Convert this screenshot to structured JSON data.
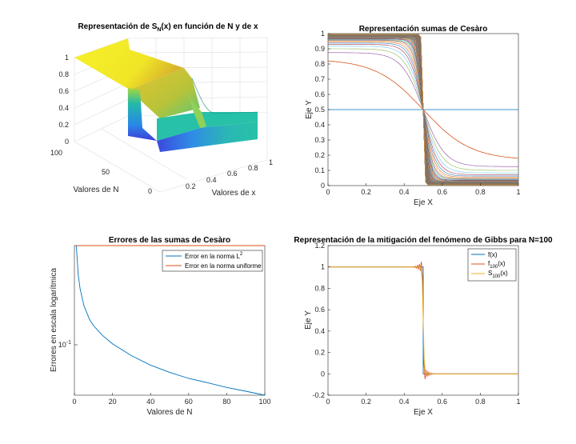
{
  "chart_data": [
    {
      "type": "surface",
      "title_main": "Representación de S",
      "title_sub": "N",
      "title_rest": "(x) en función de N y de x",
      "xlabel": "Valores de x",
      "ylabel": "Valores de N",
      "x_ticks": [
        "0.2",
        "0.4",
        "0.6",
        "0.8",
        "1"
      ],
      "n_ticks": [
        "0",
        "50",
        "100"
      ],
      "z_ticks": [
        "0",
        "0.2",
        "0.4",
        "0.6",
        "0.8",
        "1"
      ],
      "xlim": [
        0,
        1
      ],
      "nlim": [
        0,
        100
      ],
      "zlim": [
        0,
        1
      ]
    },
    {
      "type": "line",
      "title": "Representación sumas de Cesàro",
      "xlabel": "Eje X",
      "ylabel": "Eje Y",
      "xlim": [
        0,
        1
      ],
      "ylim": [
        0,
        1
      ],
      "x_ticks": [
        "0",
        "0.2",
        "0.4",
        "0.6",
        "0.8",
        "1"
      ],
      "y_ticks": [
        "0",
        "0.1",
        "0.2",
        "0.3",
        "0.4",
        "0.5",
        "0.6",
        "0.7",
        "0.8",
        "0.9",
        "1"
      ],
      "series_description": "Cesàro means of the square wave for N = 1..100",
      "first_series_value": 0.5,
      "second_series_left": 0.82,
      "second_series_right": 0.18,
      "crossing_point": [
        0.5,
        0.5
      ]
    },
    {
      "type": "line",
      "title": "Errores de las sumas de Cesàro",
      "xlabel": "Valores de N",
      "ylabel": "Errores en escala logarítmica",
      "yscale": "log",
      "xlim": [
        0,
        100
      ],
      "x_ticks": [
        "0",
        "20",
        "40",
        "60",
        "80",
        "100"
      ],
      "y_tick_base": "10",
      "y_tick_exp": "-1",
      "legend": {
        "l2_main": "Error en la norma L",
        "l2_sup": "2",
        "uniform": "Error en la norma uniforme",
        "placement": "top-right"
      },
      "series": [
        {
          "key": "l2",
          "x": [
            1,
            2,
            3,
            5,
            8,
            10,
            15,
            20,
            30,
            40,
            50,
            60,
            70,
            80,
            90,
            100
          ],
          "values": [
            0.5,
            0.31,
            0.25,
            0.19,
            0.152,
            0.138,
            0.117,
            0.103,
            0.085,
            0.073,
            0.065,
            0.059,
            0.055,
            0.051,
            0.048,
            0.045
          ]
        },
        {
          "key": "uniform",
          "x": [
            1,
            100
          ],
          "values": [
            0.5,
            0.5
          ]
        }
      ],
      "colors": {
        "l2": "#0072bd",
        "uniform": "#d95319"
      }
    },
    {
      "type": "line",
      "title": "Representación de la mitigación del fenómeno de Gibbs para N=100",
      "xlabel": "Eje X",
      "ylabel": "Eje Y",
      "xlim": [
        0,
        1
      ],
      "ylim": [
        -0.2,
        1.2
      ],
      "x_ticks": [
        "0",
        "0.2",
        "0.4",
        "0.6",
        "0.8",
        "1"
      ],
      "y_ticks": [
        "-0.2",
        "0",
        "0.2",
        "0.4",
        "0.6",
        "0.8",
        "1",
        "1.2"
      ],
      "legend": {
        "f": "f(x)",
        "f100_main": "f",
        "f100_sub": "100",
        "f100_rest": "(x)",
        "s100_main": "S",
        "s100_sub": "100",
        "s100_rest": "(x)",
        "placement": "top-right"
      },
      "colors": {
        "f": "#0072bd",
        "f100": "#d95319",
        "s100": "#edb120"
      }
    }
  ]
}
